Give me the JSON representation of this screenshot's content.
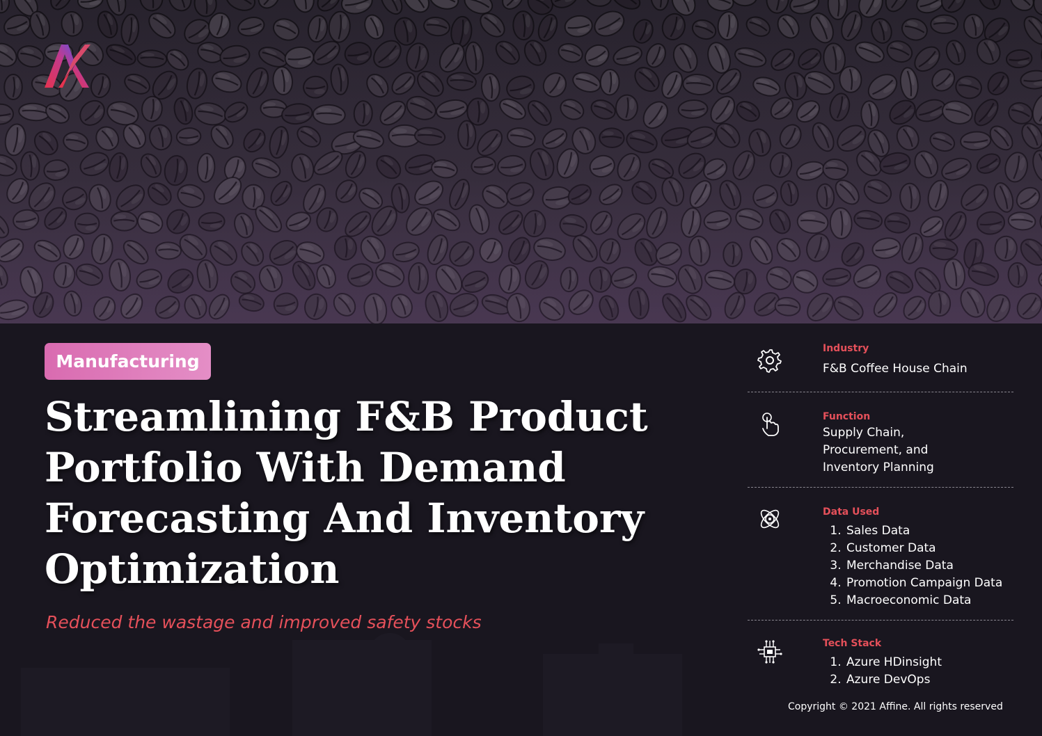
{
  "hero": {
    "image": "coffee-beans-photo"
  },
  "logo": {
    "name": "affine-logo"
  },
  "tag": "Manufacturing",
  "title": "Streamlining F&B Product Portfolio With Demand Forecasting And Inventory Optimization",
  "subtitle": "Reduced the wastage and improved safety stocks",
  "sidebar": {
    "industry": {
      "label": "Industry",
      "value": "F&B Coffee House Chain",
      "icon": "gear-icon"
    },
    "function": {
      "label": "Function",
      "value_lines": [
        "Supply Chain,",
        "Procurement, and",
        "Inventory Planning"
      ],
      "icon": "hand-touch-icon"
    },
    "data_used": {
      "label": "Data Used",
      "items": [
        "Sales Data",
        "Customer Data",
        "Merchandise Data",
        "Promotion Campaign Data",
        "Macroeconomic Data"
      ],
      "icon": "atom-icon"
    },
    "tech_stack": {
      "label": "Tech Stack",
      "items": [
        "Azure HDinsight",
        "Azure DevOps"
      ],
      "icon": "circuit-chip-icon"
    }
  },
  "copyright": "Copyright © 2021 Affine. All rights reserved",
  "colors": {
    "accent": "#e5505a",
    "tag_pink": "#d96bb0",
    "background": "#19161f"
  }
}
